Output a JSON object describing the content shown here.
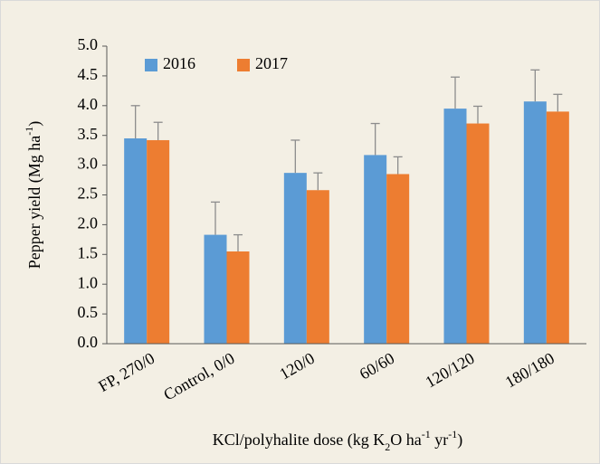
{
  "chart_data": {
    "type": "bar",
    "categories": [
      "FP, 270/0",
      "Control, 0/0",
      "120/0",
      "60/60",
      "120/120",
      "180/180"
    ],
    "series": [
      {
        "name": "2016",
        "color": "#5b9bd5",
        "values": [
          3.45,
          1.83,
          2.87,
          3.17,
          3.95,
          4.07
        ],
        "errors": [
          0.55,
          0.55,
          0.55,
          0.53,
          0.53,
          0.53
        ]
      },
      {
        "name": "2017",
        "color": "#ed7d31",
        "values": [
          3.42,
          1.55,
          2.58,
          2.85,
          3.7,
          3.9
        ],
        "errors": [
          0.3,
          0.28,
          0.29,
          0.29,
          0.29,
          0.29
        ]
      }
    ],
    "ylabel": [
      {
        "text": "Pepper yield (Mg ha",
        "shift": "base"
      },
      {
        "text": "-1",
        "shift": "super"
      },
      {
        "text": ")",
        "shift": "base"
      }
    ],
    "xlabel": [
      {
        "text": "KCl/polyhalite dose (kg K",
        "shift": "base"
      },
      {
        "text": "2",
        "shift": "sub"
      },
      {
        "text": "O ha",
        "shift": "base"
      },
      {
        "text": "-1",
        "shift": "super"
      },
      {
        "text": " yr",
        "shift": "base"
      },
      {
        "text": "-1",
        "shift": "super"
      },
      {
        "text": ")",
        "shift": "base"
      }
    ],
    "ylim": [
      0,
      5
    ],
    "yticks": [
      {
        "value": 0,
        "label": "0.0"
      },
      {
        "value": 0.5,
        "label": "0.5"
      },
      {
        "value": 1,
        "label": "1.0"
      },
      {
        "value": 1.5,
        "label": "1.5"
      },
      {
        "value": 2,
        "label": "2.0"
      },
      {
        "value": 2.5,
        "label": "2.5"
      },
      {
        "value": 3,
        "label": "3.0"
      },
      {
        "value": 3.5,
        "label": "3.5"
      },
      {
        "value": 4,
        "label": "4.0"
      },
      {
        "value": 4.5,
        "label": "4.5"
      },
      {
        "value": 5,
        "label": "5.0"
      }
    ],
    "error_color": "#8c8c8c",
    "legend": "top-left",
    "grid": false
  }
}
